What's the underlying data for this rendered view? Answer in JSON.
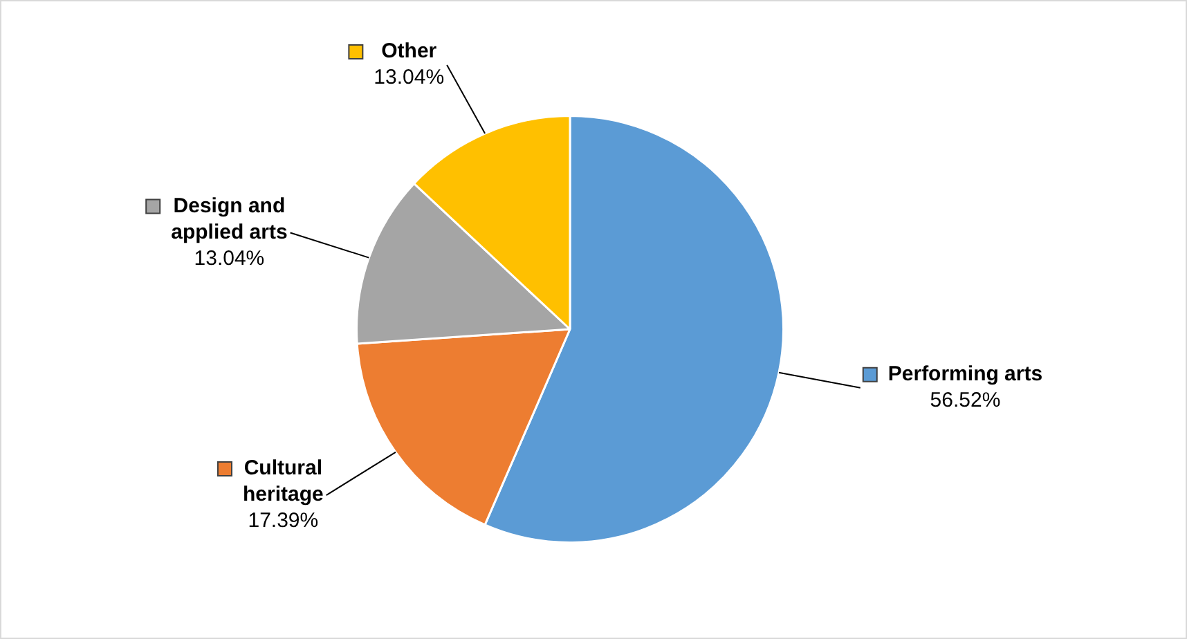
{
  "chart_data": {
    "type": "pie",
    "categories": [
      "Performing arts",
      "Cultural heritage",
      "Design and applied arts",
      "Other"
    ],
    "values": [
      56.52,
      17.39,
      13.04,
      13.04
    ],
    "colors": [
      "#5b9bd5",
      "#ed7d31",
      "#a5a5a5",
      "#ffc000"
    ],
    "value_labels": [
      "56.52%",
      "17.39%",
      "13.04%",
      "13.04%"
    ],
    "legend": "top right"
  }
}
